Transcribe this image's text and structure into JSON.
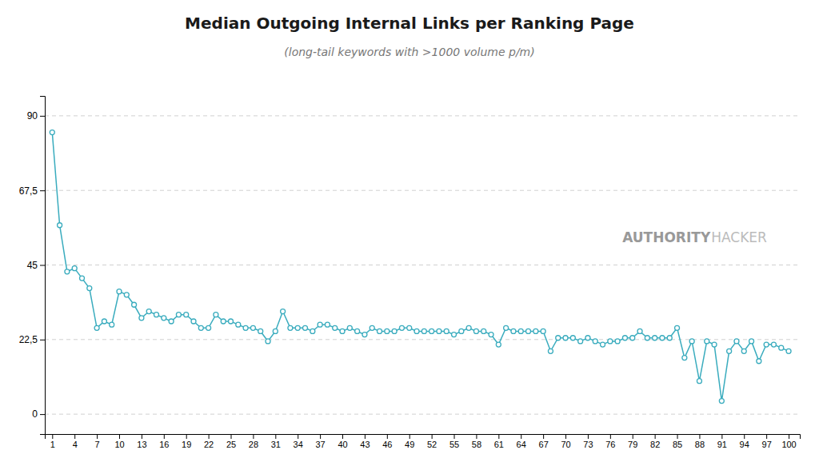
{
  "chart_data": {
    "type": "line",
    "title": "Median Outgoing Internal Links per Ranking Page",
    "subtitle": "(long-tail keywords with >1000 volume p/m)",
    "annotations": [
      "AUTHORITY",
      "HACKER"
    ],
    "color": "#3aacbe",
    "marker": "circle",
    "grid": true,
    "x": [
      1,
      2,
      3,
      4,
      5,
      6,
      7,
      8,
      9,
      10,
      11,
      12,
      13,
      14,
      15,
      16,
      17,
      18,
      19,
      20,
      21,
      22,
      23,
      24,
      25,
      26,
      27,
      28,
      29,
      30,
      31,
      32,
      33,
      34,
      35,
      36,
      37,
      38,
      39,
      40,
      41,
      42,
      43,
      44,
      45,
      46,
      47,
      48,
      49,
      50,
      51,
      52,
      53,
      54,
      55,
      56,
      57,
      58,
      59,
      60,
      61,
      62,
      63,
      64,
      65,
      66,
      67,
      68,
      69,
      70,
      71,
      72,
      73,
      74,
      75,
      76,
      77,
      78,
      79,
      80,
      81,
      82,
      83,
      84,
      85,
      86,
      87,
      88,
      89,
      90,
      91,
      92,
      93,
      94,
      95,
      96,
      97,
      98,
      99,
      100
    ],
    "values": [
      85,
      57,
      43,
      44,
      41,
      38,
      26,
      28,
      27,
      37,
      36,
      33,
      29,
      31,
      30,
      29,
      28,
      30,
      30,
      28,
      26,
      26,
      30,
      28,
      28,
      27,
      26,
      26,
      25,
      22,
      25,
      31,
      26,
      26,
      26,
      25,
      27,
      27,
      26,
      25,
      26,
      25,
      24,
      26,
      25,
      25,
      25,
      26,
      26,
      25,
      25,
      25,
      25,
      25,
      24,
      25,
      26,
      25,
      25,
      24,
      21,
      26,
      25,
      25,
      25,
      25,
      25,
      19,
      23,
      23,
      23,
      22,
      23,
      22,
      21,
      22,
      22,
      23,
      23,
      25,
      23,
      23,
      23,
      23,
      26,
      17,
      22,
      10,
      22,
      21,
      4,
      19,
      22,
      19,
      22,
      16,
      21,
      21,
      20,
      19
    ],
    "xlim": [
      0.0,
      101.5
    ],
    "xticks": [
      1,
      4,
      7,
      10,
      13,
      16,
      19,
      22,
      25,
      28,
      31,
      34,
      37,
      40,
      43,
      46,
      49,
      52,
      55,
      58,
      61,
      64,
      67,
      70,
      73,
      76,
      79,
      82,
      85,
      88,
      91,
      94,
      97,
      100
    ],
    "ylim": [
      -6,
      96
    ],
    "yticks": [
      0,
      {
        "value": 22.5,
        "label": "22,5"
      },
      45,
      {
        "value": 67.5,
        "label": "67,5"
      },
      90
    ]
  }
}
